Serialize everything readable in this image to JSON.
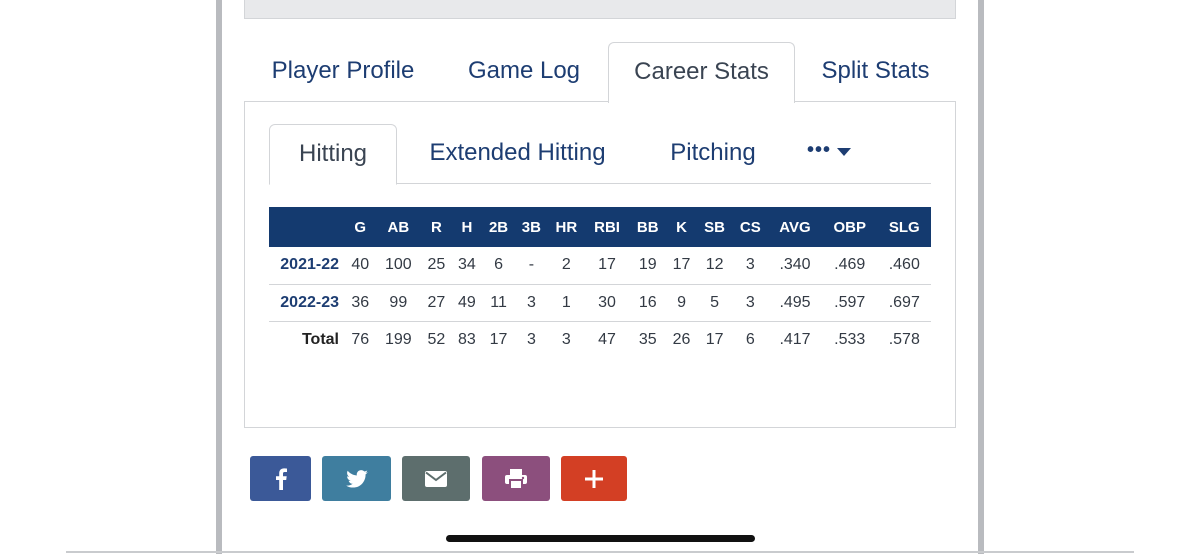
{
  "main_tabs": [
    "Player Profile",
    "Game Log",
    "Career Stats",
    "Split Stats"
  ],
  "sub_tabs": [
    "Hitting",
    "Extended Hitting",
    "Pitching"
  ],
  "more_label": "•••",
  "table": {
    "headers": [
      "",
      "G",
      "AB",
      "R",
      "H",
      "2B",
      "3B",
      "HR",
      "RBI",
      "BB",
      "K",
      "SB",
      "CS",
      "AVG",
      "OBP",
      "SLG"
    ],
    "rows": [
      [
        "2021-22",
        "40",
        "100",
        "25",
        "34",
        "6",
        "-",
        "2",
        "17",
        "19",
        "17",
        "12",
        "3",
        ".340",
        ".469",
        ".460"
      ],
      [
        "2022-23",
        "36",
        "99",
        "27",
        "49",
        "11",
        "3",
        "1",
        "30",
        "16",
        "9",
        "5",
        "3",
        ".495",
        ".597",
        ".697"
      ],
      [
        "Total",
        "76",
        "199",
        "52",
        "83",
        "17",
        "3",
        "3",
        "47",
        "35",
        "26",
        "17",
        "6",
        ".417",
        ".533",
        ".578"
      ]
    ]
  },
  "share_buttons": [
    {
      "icon": "facebook-icon",
      "color": "#3b5998"
    },
    {
      "icon": "twitter-icon",
      "color": "#3f7e9f"
    },
    {
      "icon": "email-icon",
      "color": "#5d6e6d"
    },
    {
      "icon": "print-icon",
      "color": "#8c4f7d"
    },
    {
      "icon": "plus-icon",
      "color": "#d33f24"
    }
  ],
  "colors": {
    "header_bg": "#143a6f",
    "link": "#1d3d72"
  }
}
